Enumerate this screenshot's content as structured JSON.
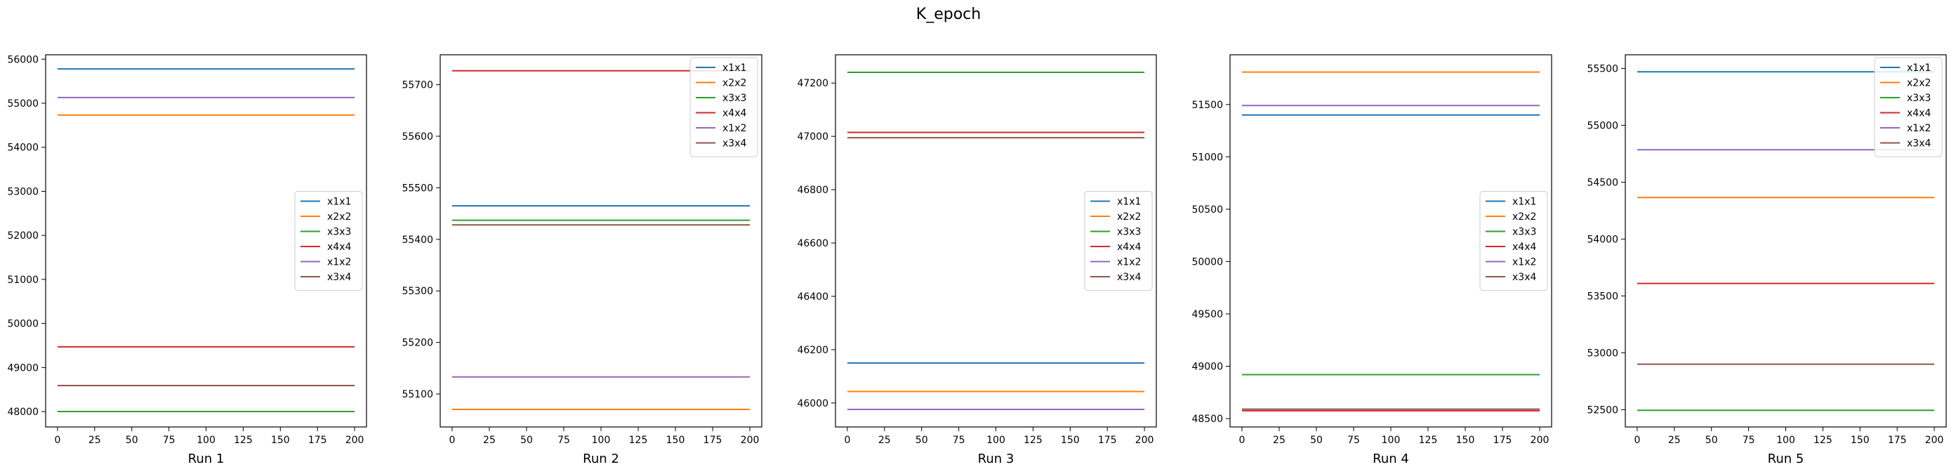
{
  "figure": {
    "title": "K_epoch"
  },
  "chart_data": [
    {
      "type": "line",
      "xlabel": "Run 1",
      "xlim": [
        -8,
        208
      ],
      "ylim": [
        47650,
        56100
      ],
      "xticks": [
        0,
        25,
        50,
        75,
        100,
        125,
        150,
        175,
        200
      ],
      "yticks": [
        48000,
        49000,
        50000,
        51000,
        52000,
        53000,
        54000,
        55000,
        56000
      ],
      "legend_position": "center-right",
      "series": [
        {
          "name": "x1x1",
          "x": [
            0,
            200
          ],
          "values": [
            55780,
            55780
          ]
        },
        {
          "name": "x2x2",
          "x": [
            0,
            200
          ],
          "values": [
            54730,
            54730
          ]
        },
        {
          "name": "x3x3",
          "x": [
            0,
            200
          ],
          "values": [
            48000,
            48000
          ]
        },
        {
          "name": "x4x4",
          "x": [
            0,
            200
          ],
          "values": [
            49470,
            49470
          ]
        },
        {
          "name": "x1x2",
          "x": [
            0,
            200
          ],
          "values": [
            55130,
            55130
          ]
        },
        {
          "name": "x3x4",
          "x": [
            0,
            200
          ],
          "values": [
            48590,
            48590
          ]
        }
      ]
    },
    {
      "type": "line",
      "xlabel": "Run 2",
      "xlim": [
        -8,
        208
      ],
      "ylim": [
        55036,
        55758
      ],
      "xticks": [
        0,
        25,
        50,
        75,
        100,
        125,
        150,
        175,
        200
      ],
      "yticks": [
        55100,
        55200,
        55300,
        55400,
        55500,
        55600,
        55700
      ],
      "legend_position": "top-right",
      "series": [
        {
          "name": "x1x1",
          "x": [
            0,
            200
          ],
          "values": [
            55465,
            55465
          ]
        },
        {
          "name": "x2x2",
          "x": [
            0,
            200
          ],
          "values": [
            55070,
            55070
          ]
        },
        {
          "name": "x3x3",
          "x": [
            0,
            200
          ],
          "values": [
            55437,
            55437
          ]
        },
        {
          "name": "x4x4",
          "x": [
            0,
            200
          ],
          "values": [
            55727,
            55727
          ]
        },
        {
          "name": "x1x2",
          "x": [
            0,
            200
          ],
          "values": [
            55133,
            55133
          ]
        },
        {
          "name": "x3x4",
          "x": [
            0,
            200
          ],
          "values": [
            55428,
            55428
          ]
        }
      ]
    },
    {
      "type": "line",
      "xlabel": "Run 3",
      "xlim": [
        -8,
        208
      ],
      "ylim": [
        45910,
        47306
      ],
      "xticks": [
        0,
        25,
        50,
        75,
        100,
        125,
        150,
        175,
        200
      ],
      "yticks": [
        46000,
        46200,
        46400,
        46600,
        46800,
        47000,
        47200
      ],
      "legend_position": "center-right",
      "series": [
        {
          "name": "x1x1",
          "x": [
            0,
            200
          ],
          "values": [
            46150,
            46150
          ]
        },
        {
          "name": "x2x2",
          "x": [
            0,
            200
          ],
          "values": [
            46043,
            46043
          ]
        },
        {
          "name": "x3x3",
          "x": [
            0,
            200
          ],
          "values": [
            47240,
            47240
          ]
        },
        {
          "name": "x4x4",
          "x": [
            0,
            200
          ],
          "values": [
            47015,
            47015
          ]
        },
        {
          "name": "x1x2",
          "x": [
            0,
            200
          ],
          "values": [
            45976,
            45976
          ]
        },
        {
          "name": "x3x4",
          "x": [
            0,
            200
          ],
          "values": [
            46995,
            46995
          ]
        }
      ]
    },
    {
      "type": "line",
      "xlabel": "Run 4",
      "xlim": [
        -8,
        208
      ],
      "ylim": [
        48420,
        51975
      ],
      "xticks": [
        0,
        25,
        50,
        75,
        100,
        125,
        150,
        175,
        200
      ],
      "yticks": [
        48500,
        49000,
        49500,
        50000,
        50500,
        51000,
        51500
      ],
      "legend_position": "center-right",
      "series": [
        {
          "name": "x1x1",
          "x": [
            0,
            200
          ],
          "values": [
            51400,
            51400
          ]
        },
        {
          "name": "x2x2",
          "x": [
            0,
            200
          ],
          "values": [
            51810,
            51810
          ]
        },
        {
          "name": "x3x3",
          "x": [
            0,
            200
          ],
          "values": [
            48920,
            48920
          ]
        },
        {
          "name": "x4x4",
          "x": [
            0,
            200
          ],
          "values": [
            48575,
            48575
          ]
        },
        {
          "name": "x1x2",
          "x": [
            0,
            200
          ],
          "values": [
            51490,
            51490
          ]
        },
        {
          "name": "x3x4",
          "x": [
            0,
            200
          ],
          "values": [
            48590,
            48590
          ]
        }
      ]
    },
    {
      "type": "line",
      "xlabel": "Run 5",
      "xlim": [
        -8,
        208
      ],
      "ylim": [
        52348,
        55620
      ],
      "xticks": [
        0,
        25,
        50,
        75,
        100,
        125,
        150,
        175,
        200
      ],
      "yticks": [
        52500,
        53000,
        53500,
        54000,
        54500,
        55000,
        55500
      ],
      "legend_position": "top-right",
      "series": [
        {
          "name": "x1x1",
          "x": [
            0,
            200
          ],
          "values": [
            55470,
            55470
          ]
        },
        {
          "name": "x2x2",
          "x": [
            0,
            200
          ],
          "values": [
            54365,
            54365
          ]
        },
        {
          "name": "x3x3",
          "x": [
            0,
            200
          ],
          "values": [
            52495,
            52495
          ]
        },
        {
          "name": "x4x4",
          "x": [
            0,
            200
          ],
          "values": [
            53610,
            53610
          ]
        },
        {
          "name": "x1x2",
          "x": [
            0,
            200
          ],
          "values": [
            54785,
            54785
          ]
        },
        {
          "name": "x3x4",
          "x": [
            0,
            200
          ],
          "values": [
            52900,
            52900
          ]
        }
      ]
    }
  ],
  "colors": {
    "x1x1": "#1f77b4",
    "x2x2": "#ff7f0e",
    "x3x3": "#2ca02c",
    "x4x4": "#d62728",
    "x1x2": "#9467bd",
    "x3x4": "#8c564b"
  }
}
